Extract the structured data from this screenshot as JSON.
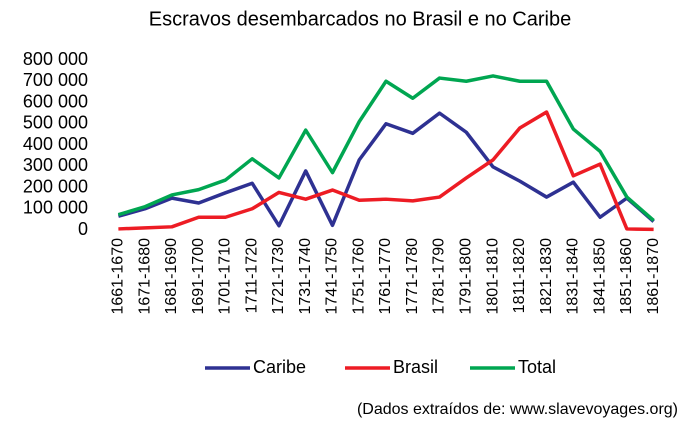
{
  "chart_data": {
    "type": "line",
    "title": "Escravos desembarcados no Brasil e no Caribe",
    "note": "(Dados extraídos de: www.slavevoyages.org)",
    "categories": [
      "1661-1670",
      "1671-1680",
      "1681-1690",
      "1691-1700",
      "1701-1710",
      "1711-1720",
      "1721-1730",
      "1731-1740",
      "1741-1750",
      "1751-1760",
      "1761-1770",
      "1771-1780",
      "1781-1790",
      "1791-1800",
      "1801-1810",
      "1811-1820",
      "1821-1830",
      "1831-1840",
      "1841-1850",
      "1851-1860",
      "1861-1870"
    ],
    "series": [
      {
        "name": "Caribe",
        "color": "#2e3192",
        "values": [
          65000,
          100000,
          150000,
          127000,
          175000,
          220000,
          20000,
          278000,
          22000,
          330000,
          500000,
          455000,
          550000,
          460000,
          297000,
          230000,
          155000,
          225000,
          60000,
          150000,
          40000
        ]
      },
      {
        "name": "Brasil",
        "color": "#ed1c24",
        "values": [
          5000,
          10000,
          15000,
          60000,
          60000,
          100000,
          177000,
          145000,
          188000,
          140000,
          145000,
          137000,
          155000,
          245000,
          330000,
          480000,
          555000,
          255000,
          310000,
          5000,
          3000
        ]
      },
      {
        "name": "Total",
        "color": "#00a651",
        "values": [
          72000,
          110000,
          165000,
          190000,
          235000,
          335000,
          245000,
          470000,
          270000,
          510000,
          700000,
          620000,
          715000,
          700000,
          725000,
          700000,
          700000,
          475000,
          370000,
          155000,
          45000
        ]
      }
    ],
    "ylim": [
      0,
      800000
    ],
    "yticks": [
      0,
      {
        "value": 100000,
        "label": "100 000"
      },
      {
        "value": 200000,
        "label": "200 000"
      },
      {
        "value": 300000,
        "label": "300 000"
      },
      {
        "value": 400000,
        "label": "400 000"
      },
      {
        "value": 500000,
        "label": "500 000"
      },
      {
        "value": 600000,
        "label": "600 000"
      },
      {
        "value": 700000,
        "label": "700 000"
      },
      {
        "value": 800000,
        "label": "800 000"
      }
    ],
    "grid": false,
    "legend": "bottom"
  }
}
